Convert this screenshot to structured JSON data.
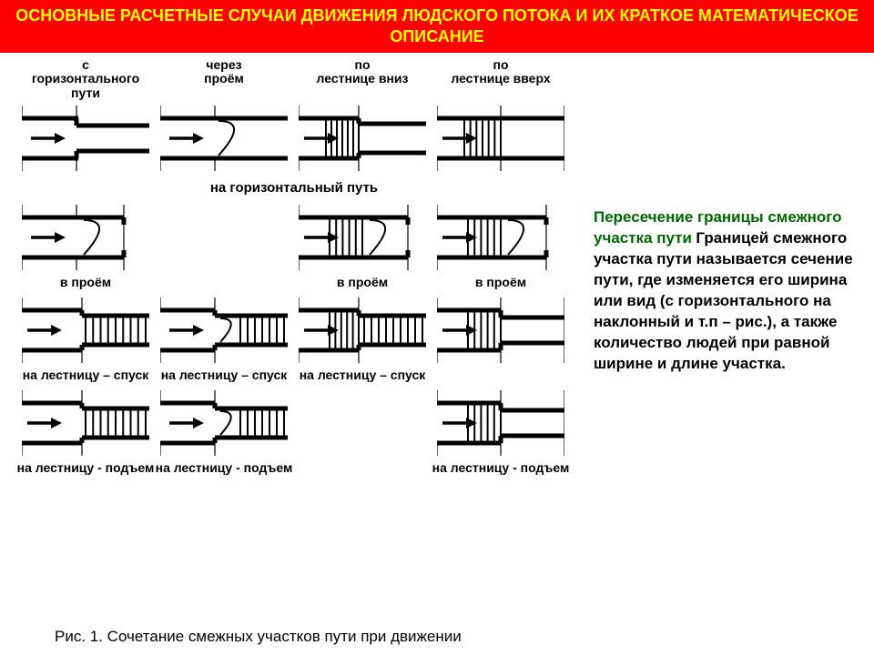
{
  "title": "ОСНОВНЫЕ РАСЧЕТНЫЕ СЛУЧАИ ДВИЖЕНИЯ ЛЮДСКОГО ПОТОКА И ИХ КРАТКОЕ МАТЕМАТИЧЕСКОЕ ОПИСАНИЕ",
  "side": {
    "heading": "Пересечение границы смежного участка пути",
    "body": "Границей смежного участка пути называется сечение пути, где изменяется его ширина или вид (с горизонтального на наклонный и т.п – рис.), а также количество людей при равной ширине и длине участка."
  },
  "caption": "Рис. 1. Сочетание смежных участков пути при движении",
  "colors": {
    "title_bg": "#ff0000",
    "title_text": "#ffff00",
    "side_heading": "#006600",
    "body_text": "#000000",
    "stroke": "#000000",
    "bg": "#ffffff"
  },
  "style": {
    "stroke_w_heavy": 5,
    "stroke_w_thin": 1.2,
    "arrow_len": 30
  },
  "top_labels": [
    "с горизонтального пути",
    "через проём",
    "по лестнице вниз",
    "по лестнице вверх"
  ],
  "rows": [
    {
      "group_title_after": "на горизонтальный путь",
      "cells": [
        {
          "type": "h-to-narrow",
          "label_top": true
        },
        {
          "type": "thru-door",
          "label_top": true
        },
        {
          "type": "stairs-to-h",
          "label_top": true
        },
        {
          "type": "stairs-end-h",
          "label_top": true
        }
      ]
    },
    {
      "cells": [
        {
          "type": "h-to-door",
          "label": "в проём"
        },
        {
          "type": "blank"
        },
        {
          "type": "stairs-to-door",
          "label": "в проём"
        },
        {
          "type": "stairs-end-door",
          "label": "в проём"
        }
      ]
    },
    {
      "cells": [
        {
          "type": "h-to-stairs",
          "label": "на лестницу – спуск"
        },
        {
          "type": "door-to-stairs",
          "label": "на лестницу – спуск"
        },
        {
          "type": "stairs-to-stairs",
          "label": "на лестницу – спуск"
        },
        {
          "type": "stairs-end-narrow",
          "label": ""
        }
      ]
    },
    {
      "cells": [
        {
          "type": "h-to-stairs",
          "label": "на лестницу - подъем"
        },
        {
          "type": "door-to-stairs",
          "label": "на лестницу - подъем"
        },
        {
          "type": "blank"
        },
        {
          "type": "stairs-to-narrow",
          "label": "на лестницу - подъем"
        }
      ]
    }
  ]
}
